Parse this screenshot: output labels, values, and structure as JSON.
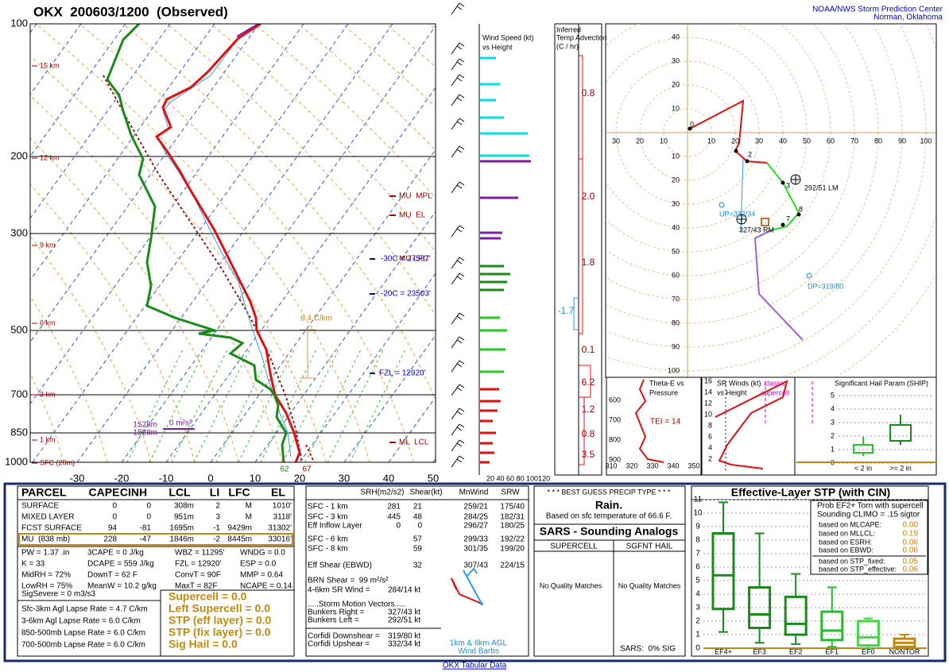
{
  "header": {
    "title": "OKX  200603/1200  (Observed)",
    "org": "NOAA/NWS Storm Prediction Center",
    "location": "Norman, Oklahoma"
  },
  "skewt": {
    "pressures": [
      "100",
      "200",
      "300",
      "500",
      "700",
      "850",
      "1000"
    ],
    "temperatures": [
      "-30",
      "-20",
      "-10",
      "0",
      "10",
      "20",
      "30",
      "40",
      "50"
    ],
    "heights": [
      "15 km",
      "12 km",
      "9 km",
      "6 km",
      "3 km",
      "1 km",
      "SFC (20m)"
    ],
    "annotations": {
      "mu_mpl": "MU  MPL",
      "mu_el": "MU  EL",
      "t30": "-30C = 27567'",
      "mu_lfc": "MU LFC",
      "t20": "-20C = 23503'",
      "fzl": "FZL = 12920'",
      "ml_lcl": "ML  LCL",
      "lapse": "6.4 C/km",
      "eff_top": "1528m",
      "eff_srh": "0 m²s²",
      "eff_bottom": "1528m",
      "sfc_td": "62",
      "sfc_t": "67"
    }
  },
  "wind_panel": {
    "title": [
      "Wind Speed (kt)",
      "vs Height"
    ],
    "axis": "20 40 60 80 100120"
  },
  "advection": {
    "title": [
      "Inferred",
      "Temp Advection",
      "(C / hr)"
    ],
    "values": [
      "0.8",
      "2.0",
      "1.8",
      "-1.7",
      "0.1",
      "6.2",
      "1.2",
      "0.8",
      "3.5"
    ]
  },
  "hodograph": {
    "up": [
      "40",
      "30",
      "20",
      "10"
    ],
    "down": [
      "10",
      "20",
      "30",
      "40",
      "50",
      "60",
      "70",
      "80",
      "90",
      "100"
    ],
    "left": [
      "30",
      "20",
      "10"
    ],
    "right": [
      "10",
      "20",
      "30",
      "40",
      "50",
      "60",
      "70",
      "80",
      "90",
      "100"
    ],
    "points": [
      "0",
      "2",
      "3",
      "8",
      "7"
    ],
    "lm": "292/51 LM",
    "rm": "327/43 RM",
    "upshear": "UP=332/34",
    "downshear": "DP=319/80"
  },
  "theta_e": {
    "title": [
      "Theta-E vs",
      "Pressure"
    ],
    "pressures": [
      "600",
      "700",
      "800",
      "900"
    ],
    "temps": [
      "310",
      "320",
      "330",
      "340",
      "350"
    ],
    "tei": "TEI = 14"
  },
  "sr_winds": {
    "title": [
      "SR Winds (kt)",
      "vs Height"
    ],
    "heights": [
      "16",
      "14",
      "12",
      "10",
      "8",
      "6",
      "4",
      "2"
    ],
    "note": [
      "classic",
      "supercell"
    ]
  },
  "ship": {
    "title": "Significant Hail Param (SHIP)",
    "ticks": [
      "5",
      "4",
      "3",
      "2",
      "1",
      "0"
    ],
    "categories": [
      "< 2 in",
      ">= 2 in"
    ]
  },
  "parcel_table": {
    "header": [
      "PARCEL",
      "CAPE",
      "CINH",
      "LCL",
      "LI",
      "LFC",
      "EL"
    ],
    "rows": [
      [
        "SURFACE",
        "0",
        "0",
        "308m",
        "2",
        "M",
        "1010'"
      ],
      [
        "MIXED LAYER",
        "0",
        "0",
        "951m",
        "3",
        "M",
        "3118'"
      ],
      [
        "FCST SURFACE",
        "94",
        "-81",
        "1695m",
        "-1",
        "9429m",
        "31302'"
      ],
      [
        "MU  (838 mb)",
        "228",
        "-47",
        "1846m",
        "-2",
        "8445m",
        "33016'"
      ]
    ]
  },
  "indices": [
    [
      "PW = 1.37 .in",
      "3CAPE = 0 J/kg",
      "WBZ = 11295'",
      "WNDG = 0.0"
    ],
    [
      "K = 33",
      "DCAPE = 559 J/kg",
      "FZL = 12920'",
      "ESP = 0.0"
    ],
    [
      "MidRH = 72%",
      "DownT = 62 F",
      "ConvT = 90F",
      "MMP = 0.64"
    ],
    [
      "LowRH = 75%",
      "MeanW = 10.2 g/kg",
      "MaxT = 82F",
      "NCAPE = 0.14"
    ]
  ],
  "sig_severe": "SigSevere = 0 m3/s3",
  "lapse_rates": [
    "Sfc-3km Agl Lapse Rate = 4.7 C/km",
    "3-6km Agl Lapse Rate = 6.0 C/km",
    "850-500mb Lapse Rate = 6.0 C/km",
    "700-500mb Lapse Rate = 6.0 C/km"
  ],
  "composites": [
    "Supercell = 0.0",
    "Left Supercell = 0.0",
    "STP (eff layer) = 0.0",
    "STP (fix layer) = 0.0",
    "Sig Hail = 0.0"
  ],
  "kinematics": {
    "header": [
      "SRH(m2/s2)",
      "Shear(kt)",
      "MnWind",
      "SRW"
    ],
    "rows": [
      {
        "label": "SFC - 1 km",
        "srh": "281",
        "shear": "21",
        "mnwind": "259/21",
        "srw": "175/40"
      },
      {
        "label": "SFC - 3 km",
        "srh": "445",
        "shear": "48",
        "mnwind": "284/25",
        "srw": "182/31"
      },
      {
        "label": "Eff Inflow Layer",
        "srh": "0",
        "shear": "0",
        "mnwind": "296/27",
        "srw": "180/25"
      },
      {
        "label": "SFC - 6 km",
        "shear": "57",
        "mnwind": "299/33",
        "srw": "192/22"
      },
      {
        "label": "SFC - 8 km",
        "shear": "59",
        "mnwind": "301/35",
        "srw": "199/20"
      },
      {
        "label": "Eff Shear (EBWD)",
        "shear": "32",
        "mnwind": "307/43",
        "srw": "224/15"
      }
    ],
    "brn": "BRN Shear =  99 m²/s²",
    "sr_wind": [
      "4-6km SR Wind =",
      "284/14 kt"
    ],
    "motion_title": ".....Storm Motion Vectors.....",
    "motions": [
      [
        "Bunkers Right =",
        "327/43 kt"
      ],
      [
        "Bunkers Left =",
        "292/51 kt"
      ]
    ],
    "corfidi": [
      [
        "Corfidi Downshear =",
        "319/80 kt"
      ],
      [
        "Corfidi Upshear =",
        "332/34 kt"
      ]
    ],
    "barb_note": [
      "1km & 6km AGL",
      "Wind Barbs"
    ]
  },
  "precip": {
    "banner": "* * * BEST GUESS PRECIP TYPE * * *",
    "type": "Rain.",
    "basis": "Based on sfc temperature of 66.6 F."
  },
  "sars": {
    "title": "SARS - Sounding Analogs",
    "columns": [
      "SUPERCELL",
      "SGFNT HAIL"
    ],
    "matches": [
      "No Quality Matches",
      "No Quality Matches"
    ],
    "summary": "SARS:  0% SIG"
  },
  "stp": {
    "title": "Effective-Layer STP (with CIN)",
    "ylim": [
      0,
      11.5
    ],
    "yticks": [
      0,
      1,
      2,
      3,
      4,
      5,
      6,
      7,
      8,
      9,
      10,
      11
    ],
    "boxes": [
      {
        "name": "EF4+",
        "color": "#1a8a1a",
        "low": 1.2,
        "q1": 2.9,
        "median": 5.4,
        "q3": 8.5,
        "high": 10.8
      },
      {
        "name": "EF3",
        "color": "#1a8a1a",
        "low": 0.4,
        "q1": 1.5,
        "median": 2.5,
        "q3": 4.5,
        "high": 8.5
      },
      {
        "name": "EF2",
        "color": "#1a8a1a",
        "low": 0.3,
        "q1": 1.0,
        "median": 1.8,
        "q3": 3.8,
        "high": 5.5
      },
      {
        "name": "EF1",
        "color": "#2fb82f",
        "low": 0.1,
        "q1": 0.6,
        "median": 1.3,
        "q3": 2.7,
        "high": 4.5
      },
      {
        "name": "EF0",
        "color": "#3fd83f",
        "low": 0,
        "q1": 0.2,
        "median": 0.8,
        "q3": 2.0,
        "high": 2.2
      },
      {
        "name": "NONTOR",
        "color": "#c08a10",
        "low": 0,
        "q1": 0.1,
        "median": 0.4,
        "q3": 0.7,
        "high": 1.0
      }
    ],
    "prob": [
      "Prob EF2+ Torn with supercell",
      "Sounding CLIMO = .15 sigtor"
    ],
    "based": [
      [
        "based on MLCAPE:",
        "0.00"
      ],
      [
        "based on MLLCL:",
        "0.19"
      ],
      [
        "based on ESRH:",
        "0.06"
      ],
      [
        "based on EBWD:",
        "0.06"
      ],
      [
        "based on STP_fixed:",
        "0.05"
      ],
      [
        "based on STP_effective:",
        "0.06"
      ]
    ]
  },
  "footer_link": "OKX Tabular Data"
}
